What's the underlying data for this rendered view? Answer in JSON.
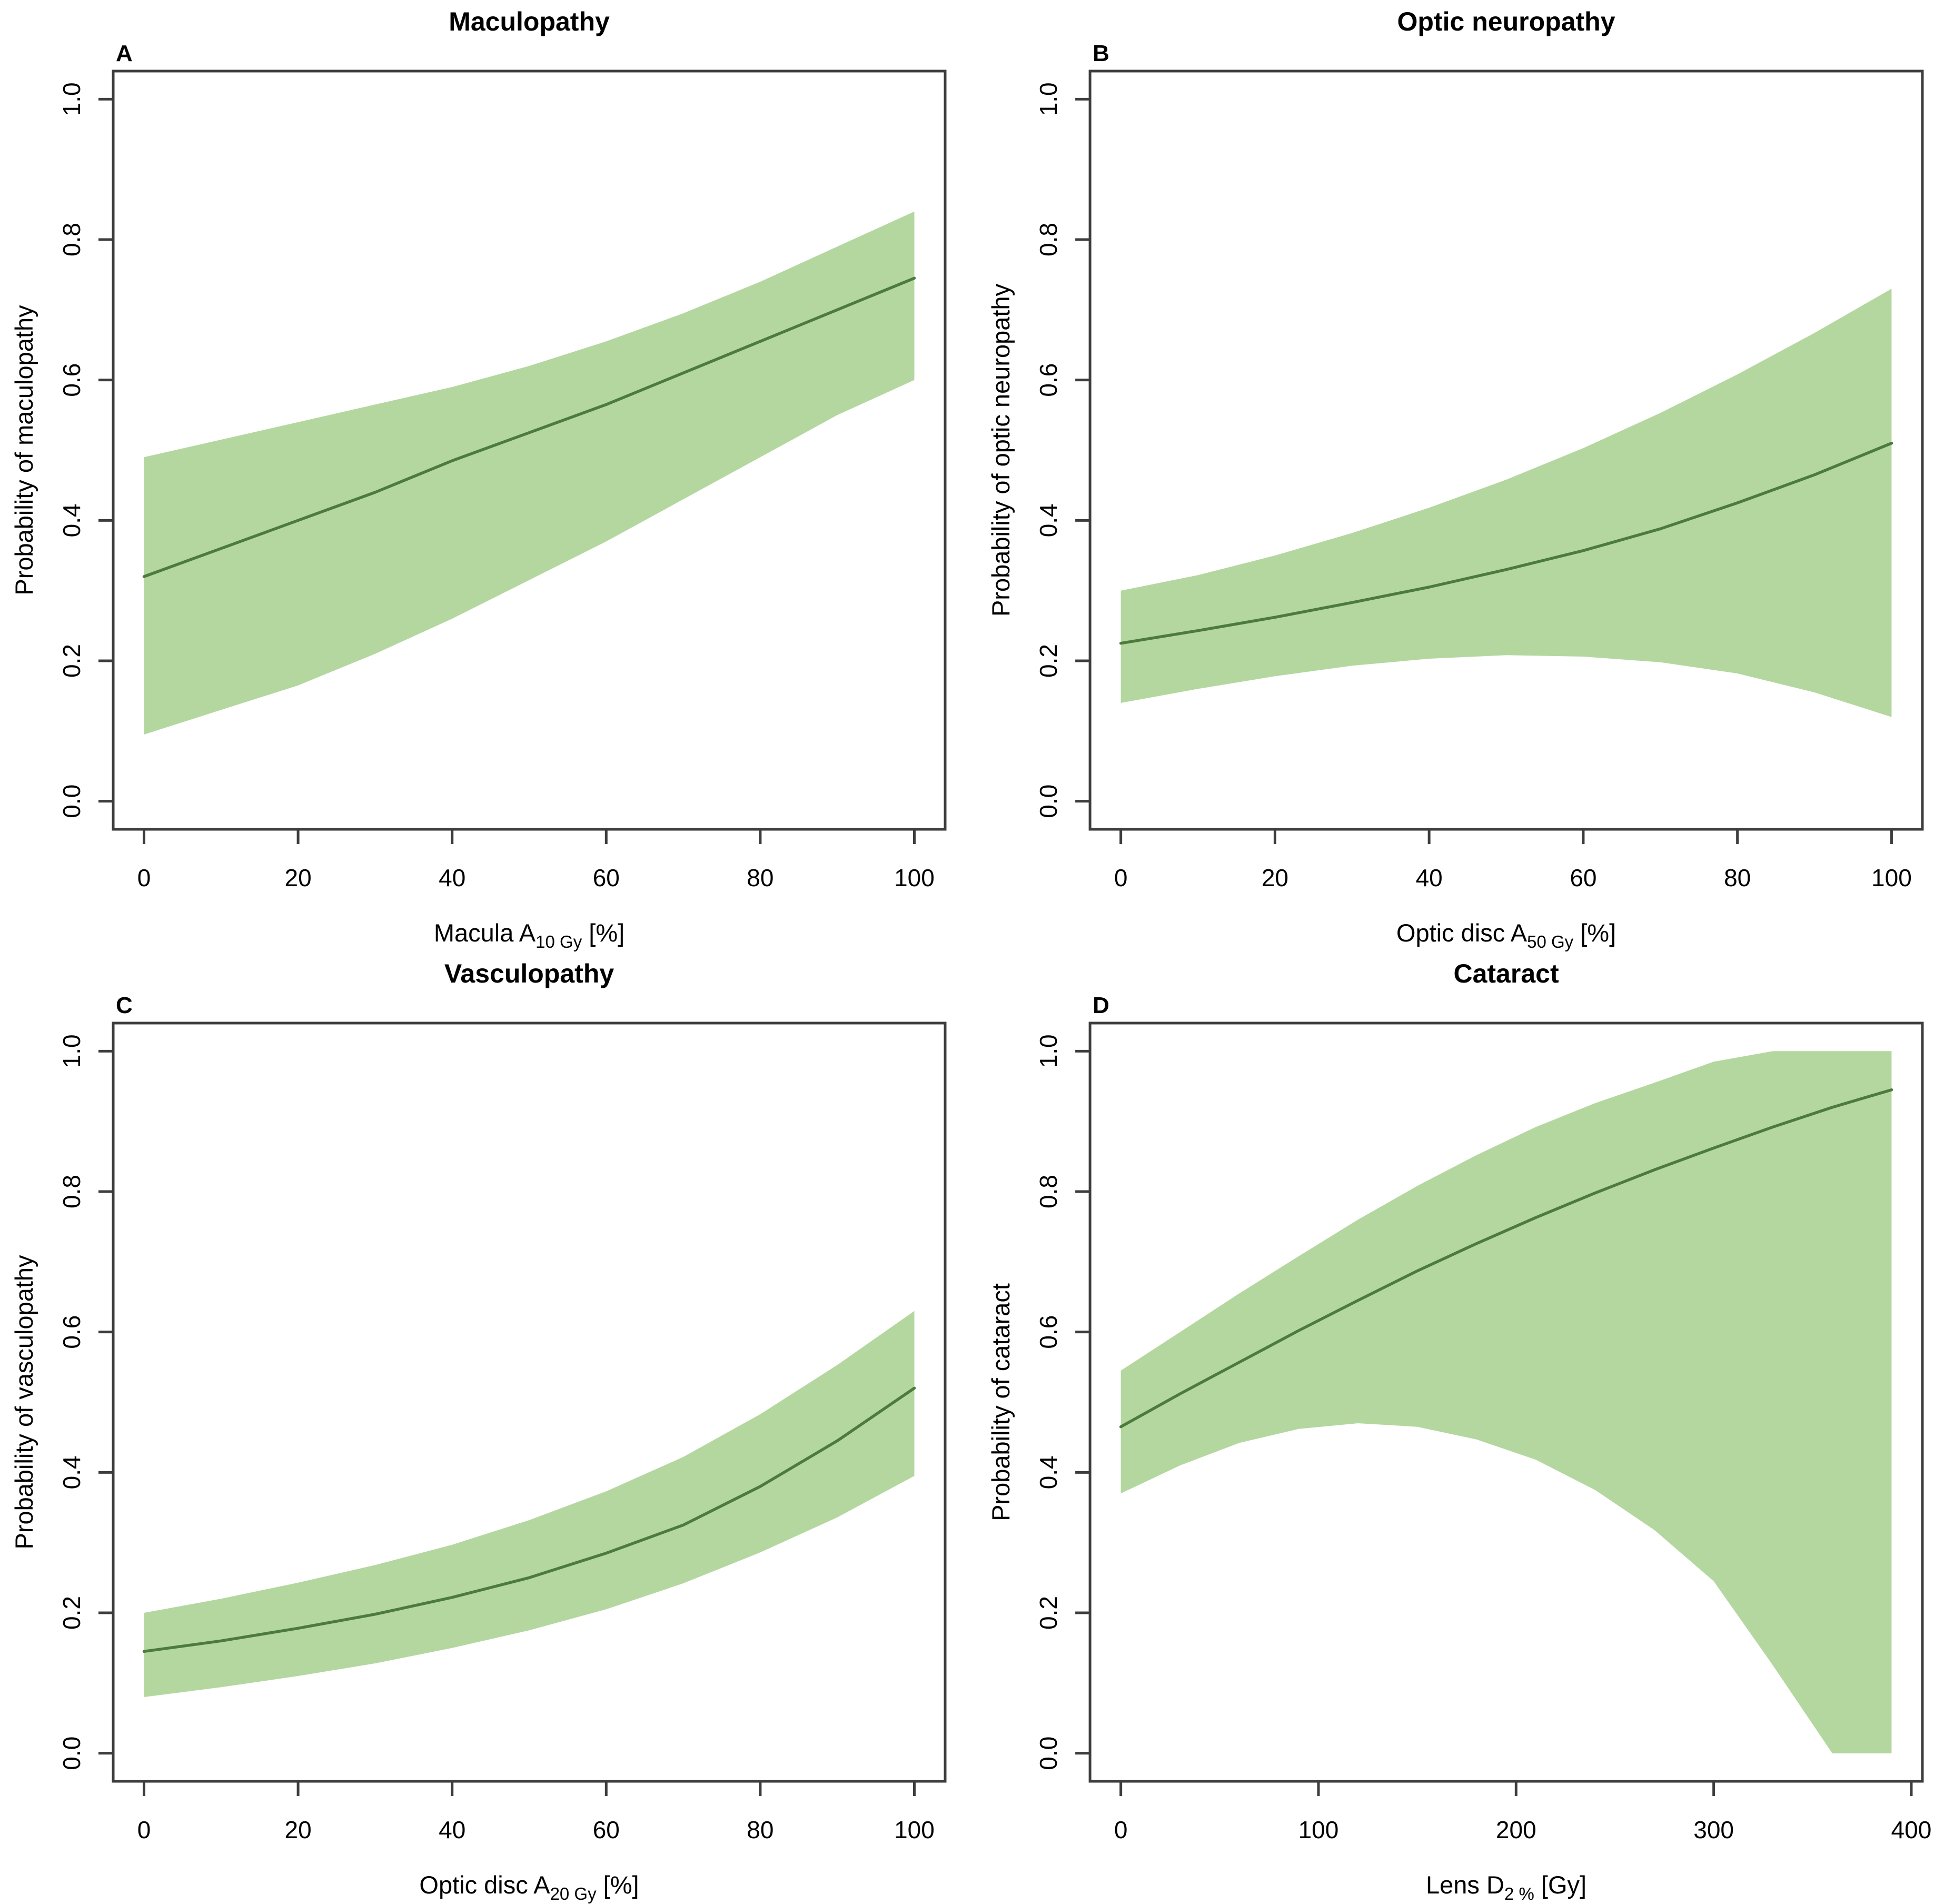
{
  "figure": {
    "background": "#ffffff",
    "band_color": "#b4d7a0",
    "line_color": "#4c7b3d",
    "axis_color": "#3d3d3d",
    "text_color": "#000000"
  },
  "chart_data": [
    {
      "type": "area",
      "panel": "A",
      "title": "Maculopathy",
      "ylabel": "Probability of maculopathy",
      "xlabel": {
        "pre": "Macula A",
        "sub": "10 Gy",
        "post": " [%]"
      },
      "xlim": [
        0,
        100
      ],
      "ylim": [
        0,
        1
      ],
      "xticks": [
        0,
        20,
        40,
        60,
        80,
        100
      ],
      "yticks": [
        "0.0",
        "0.2",
        "0.4",
        "0.6",
        "0.8",
        "1.0"
      ],
      "x": [
        0,
        10,
        20,
        30,
        40,
        50,
        60,
        70,
        80,
        90,
        100
      ],
      "mean": [
        0.32,
        0.36,
        0.4,
        0.44,
        0.485,
        0.525,
        0.565,
        0.61,
        0.655,
        0.7,
        0.745
      ],
      "upper": [
        0.49,
        0.515,
        0.54,
        0.565,
        0.59,
        0.62,
        0.655,
        0.695,
        0.74,
        0.79,
        0.84
      ],
      "lower": [
        0.095,
        0.13,
        0.165,
        0.21,
        0.26,
        0.315,
        0.37,
        0.43,
        0.49,
        0.55,
        0.6
      ],
      "legend": "none",
      "grid": "off"
    },
    {
      "type": "area",
      "panel": "B",
      "title": "Optic neuropathy",
      "ylabel": "Probability of optic neuropathy",
      "xlabel": {
        "pre": "Optic disc A",
        "sub": "50 Gy",
        "post": " [%]"
      },
      "xlim": [
        0,
        100
      ],
      "ylim": [
        0,
        1
      ],
      "xticks": [
        0,
        20,
        40,
        60,
        80,
        100
      ],
      "yticks": [
        "0.0",
        "0.2",
        "0.4",
        "0.6",
        "0.8",
        "1.0"
      ],
      "x": [
        0,
        10,
        20,
        30,
        40,
        50,
        60,
        70,
        80,
        90,
        100
      ],
      "mean": [
        0.225,
        0.243,
        0.262,
        0.283,
        0.305,
        0.33,
        0.357,
        0.388,
        0.425,
        0.465,
        0.51
      ],
      "upper": [
        0.3,
        0.322,
        0.35,
        0.382,
        0.418,
        0.458,
        0.503,
        0.553,
        0.608,
        0.667,
        0.73
      ],
      "lower": [
        0.14,
        0.16,
        0.178,
        0.193,
        0.203,
        0.208,
        0.206,
        0.198,
        0.182,
        0.155,
        0.12
      ],
      "legend": "none",
      "grid": "off"
    },
    {
      "type": "area",
      "panel": "C",
      "title": "Vasculopathy",
      "ylabel": "Probability of vasculopathy",
      "xlabel": {
        "pre": "Optic disc A",
        "sub": "20 Gy",
        "post": " [%]"
      },
      "xlim": [
        0,
        100
      ],
      "ylim": [
        0,
        1
      ],
      "xticks": [
        0,
        20,
        40,
        60,
        80,
        100
      ],
      "yticks": [
        "0.0",
        "0.2",
        "0.4",
        "0.6",
        "0.8",
        "1.0"
      ],
      "x": [
        0,
        10,
        20,
        30,
        40,
        50,
        60,
        70,
        80,
        90,
        100
      ],
      "mean": [
        0.145,
        0.16,
        0.178,
        0.198,
        0.222,
        0.25,
        0.285,
        0.325,
        0.38,
        0.445,
        0.52
      ],
      "upper": [
        0.2,
        0.22,
        0.243,
        0.268,
        0.297,
        0.332,
        0.373,
        0.422,
        0.483,
        0.553,
        0.63
      ],
      "lower": [
        0.08,
        0.094,
        0.11,
        0.128,
        0.15,
        0.175,
        0.205,
        0.242,
        0.286,
        0.336,
        0.395
      ],
      "legend": "none",
      "grid": "off"
    },
    {
      "type": "area",
      "panel": "D",
      "title": "Cataract",
      "ylabel": "Probability of cataract",
      "xlabel": {
        "pre": "Lens D",
        "sub": "2 %",
        "post": " [Gy]"
      },
      "xlim": [
        0,
        390
      ],
      "ylim": [
        0,
        1
      ],
      "xticks": [
        0,
        100,
        200,
        300,
        400
      ],
      "yticks": [
        "0.0",
        "0.2",
        "0.4",
        "0.6",
        "0.8",
        "1.0"
      ],
      "x": [
        0,
        30,
        60,
        90,
        120,
        150,
        180,
        210,
        240,
        270,
        300,
        330,
        360,
        390
      ],
      "mean": [
        0.465,
        0.512,
        0.557,
        0.602,
        0.645,
        0.687,
        0.726,
        0.763,
        0.798,
        0.831,
        0.862,
        0.892,
        0.92,
        0.945
      ],
      "upper": [
        0.545,
        0.6,
        0.655,
        0.708,
        0.76,
        0.808,
        0.852,
        0.892,
        0.926,
        0.955,
        0.985,
        1.0,
        1.0,
        1.0
      ],
      "lower": [
        0.37,
        0.41,
        0.442,
        0.462,
        0.47,
        0.465,
        0.447,
        0.418,
        0.375,
        0.318,
        0.245,
        0.125,
        0.0,
        0.0
      ],
      "legend": "none",
      "grid": "off"
    }
  ]
}
